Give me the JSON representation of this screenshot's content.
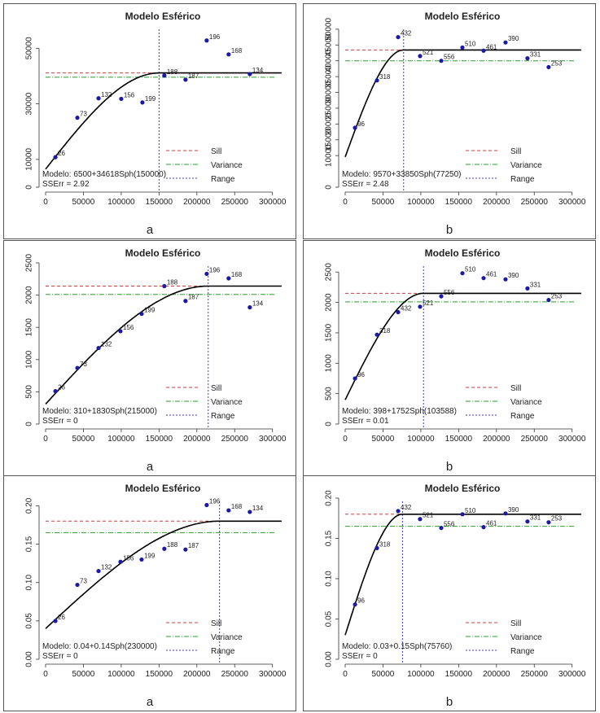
{
  "colors": {
    "frame": "#555555",
    "axis": "#333333",
    "curve": "#000000",
    "point": "#1a1aa6",
    "sill": "#d33b3b",
    "variance": "#2aa02a",
    "range": "#3a3ad0",
    "text": "#222222"
  },
  "chart_data": [
    {
      "type": "scatter",
      "title": "Modelo Esférico",
      "caption": "a",
      "xlim": [
        0,
        310000
      ],
      "ylim": [
        0,
        58000
      ],
      "xticks": [
        0,
        50000,
        100000,
        150000,
        200000,
        250000,
        300000
      ],
      "xtick_labels": [
        "0",
        "50000",
        "100000",
        "150000",
        "200000",
        "250000",
        "300000"
      ],
      "yticks": [
        0,
        10000,
        30000,
        50000
      ],
      "ytick_labels": [
        "0",
        "10000",
        "30000",
        "50000"
      ],
      "nugget": 6500,
      "psill": 34618,
      "range": 150000,
      "sill": 41118,
      "variance": 39600,
      "points": [
        {
          "x": 13000,
          "y": 10800,
          "label": "26"
        },
        {
          "x": 42000,
          "y": 25000,
          "label": "73"
        },
        {
          "x": 70000,
          "y": 32000,
          "label": "132"
        },
        {
          "x": 100000,
          "y": 31800,
          "label": "156"
        },
        {
          "x": 128000,
          "y": 30500,
          "label": "199"
        },
        {
          "x": 157000,
          "y": 40200,
          "label": "188"
        },
        {
          "x": 185000,
          "y": 38700,
          "label": "187"
        },
        {
          "x": 213000,
          "y": 52800,
          "label": "196"
        },
        {
          "x": 242000,
          "y": 47800,
          "label": "168"
        },
        {
          "x": 270000,
          "y": 40700,
          "label": "134"
        }
      ],
      "legend": [
        "Sill",
        "Variance",
        "Range"
      ],
      "model_text": "Modelo: 6500+34618Sph(150000)",
      "sserr_text": "SSErr = 2.92"
    },
    {
      "type": "scatter",
      "title": "Modelo Esférico",
      "caption": "b",
      "xlim": [
        0,
        310000
      ],
      "ylim": [
        0,
        51000
      ],
      "xticks": [
        0,
        50000,
        100000,
        150000,
        200000,
        250000,
        300000
      ],
      "xtick_labels": [
        "0",
        "50000",
        "100000",
        "150000",
        "200000",
        "250000",
        "300000"
      ],
      "yticks": [
        0,
        10000,
        15000,
        20000,
        25000,
        30000,
        35000,
        40000,
        45000,
        50000
      ],
      "ytick_labels": [
        "0",
        "10000",
        "15000",
        "20000",
        "25000",
        "30000",
        "35000",
        "40000",
        "45000",
        "50000"
      ],
      "nugget": 9570,
      "psill": 33850,
      "range": 77250,
      "sill": 43420,
      "variance": 40000,
      "points": [
        {
          "x": 13000,
          "y": 18800,
          "label": "96"
        },
        {
          "x": 42000,
          "y": 33800,
          "label": "318"
        },
        {
          "x": 70000,
          "y": 47500,
          "label": "432"
        },
        {
          "x": 99000,
          "y": 41500,
          "label": "521"
        },
        {
          "x": 127000,
          "y": 40000,
          "label": "556"
        },
        {
          "x": 155000,
          "y": 44200,
          "label": "510"
        },
        {
          "x": 183000,
          "y": 43200,
          "label": "461"
        },
        {
          "x": 212000,
          "y": 45800,
          "label": "390"
        },
        {
          "x": 241000,
          "y": 40800,
          "label": "331"
        },
        {
          "x": 269000,
          "y": 38000,
          "label": "253"
        }
      ],
      "legend": [
        "Sill",
        "Variance",
        "Range"
      ],
      "model_text": "Modelo: 9570+33850Sph(77250)",
      "sserr_text": "SSErr = 2.48"
    },
    {
      "type": "scatter",
      "title": "Modelo Esférico",
      "caption": "a",
      "xlim": [
        0,
        310000
      ],
      "ylim": [
        0,
        2500
      ],
      "xticks": [
        0,
        50000,
        100000,
        150000,
        200000,
        250000,
        300000
      ],
      "xtick_labels": [
        "0",
        "50000",
        "100000",
        "150000",
        "200000",
        "250000",
        "300000"
      ],
      "yticks": [
        0,
        500,
        1000,
        1500,
        2000,
        2500
      ],
      "ytick_labels": [
        "0",
        "500",
        "1000",
        "1500",
        "2000",
        "2500"
      ],
      "nugget": 310,
      "psill": 1830,
      "range": 215000,
      "sill": 2140,
      "variance": 2010,
      "points": [
        {
          "x": 13000,
          "y": 510,
          "label": "26"
        },
        {
          "x": 42000,
          "y": 870,
          "label": "73"
        },
        {
          "x": 70000,
          "y": 1180,
          "label": "132"
        },
        {
          "x": 99000,
          "y": 1440,
          "label": "156"
        },
        {
          "x": 127000,
          "y": 1710,
          "label": "199"
        },
        {
          "x": 157000,
          "y": 2140,
          "label": "188"
        },
        {
          "x": 185000,
          "y": 1910,
          "label": "187"
        },
        {
          "x": 213000,
          "y": 2330,
          "label": "196"
        },
        {
          "x": 242000,
          "y": 2260,
          "label": "168"
        },
        {
          "x": 270000,
          "y": 1810,
          "label": "134"
        }
      ],
      "legend": [
        "Sill",
        "Variance",
        "Range"
      ],
      "model_text": "Modelo: 310+1830Sph(215000)",
      "sserr_text": "SSErr = 0"
    },
    {
      "type": "scatter",
      "title": "Modelo Esférico",
      "caption": "b",
      "xlim": [
        0,
        310000
      ],
      "ylim": [
        0,
        2650
      ],
      "xticks": [
        0,
        50000,
        100000,
        150000,
        200000,
        250000,
        300000
      ],
      "xtick_labels": [
        "0",
        "50000",
        "100000",
        "150000",
        "200000",
        "250000",
        "300000"
      ],
      "yticks": [
        0,
        500,
        1000,
        1500,
        2000,
        2500
      ],
      "ytick_labels": [
        "0",
        "500",
        "1000",
        "1500",
        "2000",
        "2500"
      ],
      "nugget": 398,
      "psill": 1752,
      "range": 103588,
      "sill": 2150,
      "variance": 2010,
      "points": [
        {
          "x": 13000,
          "y": 750,
          "label": "96"
        },
        {
          "x": 42000,
          "y": 1470,
          "label": "318"
        },
        {
          "x": 70000,
          "y": 1840,
          "label": "432"
        },
        {
          "x": 99000,
          "y": 1930,
          "label": "521"
        },
        {
          "x": 127000,
          "y": 2100,
          "label": "556"
        },
        {
          "x": 155000,
          "y": 2480,
          "label": "510"
        },
        {
          "x": 183000,
          "y": 2400,
          "label": "461"
        },
        {
          "x": 212000,
          "y": 2380,
          "label": "390"
        },
        {
          "x": 241000,
          "y": 2230,
          "label": "331"
        },
        {
          "x": 269000,
          "y": 2040,
          "label": "253"
        }
      ],
      "legend": [
        "Sill",
        "Variance",
        "Range"
      ],
      "model_text": "Modelo: 398+1752Sph(103588)",
      "sserr_text": "SSErr = 0.01"
    },
    {
      "type": "scatter",
      "title": "Modelo Esférico",
      "caption": "a",
      "xlim": [
        0,
        310000
      ],
      "ylim": [
        0,
        0.21
      ],
      "xticks": [
        0,
        50000,
        100000,
        150000,
        200000,
        250000,
        300000
      ],
      "xtick_labels": [
        "0",
        "50000",
        "100000",
        "150000",
        "200000",
        "250000",
        "300000"
      ],
      "yticks": [
        0,
        0.05,
        0.1,
        0.15,
        0.2
      ],
      "ytick_labels": [
        "0.00",
        "0.05",
        "0.10",
        "0.15",
        "0.20"
      ],
      "nugget": 0.04,
      "psill": 0.14,
      "range": 230000,
      "sill": 0.18,
      "variance": 0.165,
      "points": [
        {
          "x": 13000,
          "y": 0.05,
          "label": "26"
        },
        {
          "x": 42000,
          "y": 0.097,
          "label": "73"
        },
        {
          "x": 70000,
          "y": 0.115,
          "label": "132"
        },
        {
          "x": 99000,
          "y": 0.127,
          "label": "156"
        },
        {
          "x": 127000,
          "y": 0.13,
          "label": "199"
        },
        {
          "x": 157000,
          "y": 0.144,
          "label": "188"
        },
        {
          "x": 185000,
          "y": 0.143,
          "label": "187"
        },
        {
          "x": 213000,
          "y": 0.201,
          "label": "196"
        },
        {
          "x": 242000,
          "y": 0.194,
          "label": "168"
        },
        {
          "x": 270000,
          "y": 0.192,
          "label": "134"
        }
      ],
      "legend": [
        "Sill",
        "Variance",
        "Range"
      ],
      "model_text": "Modelo: 0.04+0.14Sph(230000)",
      "sserr_text": "SSErr = 0"
    },
    {
      "type": "scatter",
      "title": "Modelo Esférico",
      "caption": "b",
      "xlim": [
        0,
        310000
      ],
      "ylim": [
        0,
        0.2
      ],
      "xticks": [
        0,
        50000,
        100000,
        150000,
        200000,
        250000,
        300000
      ],
      "xtick_labels": [
        "0",
        "50000",
        "100000",
        "150000",
        "200000",
        "250000",
        "300000"
      ],
      "yticks": [
        0,
        0.05,
        0.1,
        0.15,
        0.2
      ],
      "ytick_labels": [
        "0.00",
        "0.05",
        "0.10",
        "0.15",
        "0.20"
      ],
      "nugget": 0.03,
      "psill": 0.15,
      "range": 75760,
      "sill": 0.18,
      "variance": 0.165,
      "points": [
        {
          "x": 13000,
          "y": 0.068,
          "label": "96"
        },
        {
          "x": 42000,
          "y": 0.138,
          "label": "318"
        },
        {
          "x": 70000,
          "y": 0.184,
          "label": "432"
        },
        {
          "x": 99000,
          "y": 0.174,
          "label": "521"
        },
        {
          "x": 127000,
          "y": 0.163,
          "label": "556"
        },
        {
          "x": 155000,
          "y": 0.18,
          "label": "510"
        },
        {
          "x": 183000,
          "y": 0.164,
          "label": "461"
        },
        {
          "x": 212000,
          "y": 0.181,
          "label": "390"
        },
        {
          "x": 241000,
          "y": 0.171,
          "label": "331"
        },
        {
          "x": 269000,
          "y": 0.17,
          "label": "253"
        }
      ],
      "legend": [
        "Sill",
        "Variance",
        "Range"
      ],
      "model_text": "Modelo: 0.03+0.15Sph(75760)",
      "sserr_text": "SSErr = 0"
    }
  ]
}
